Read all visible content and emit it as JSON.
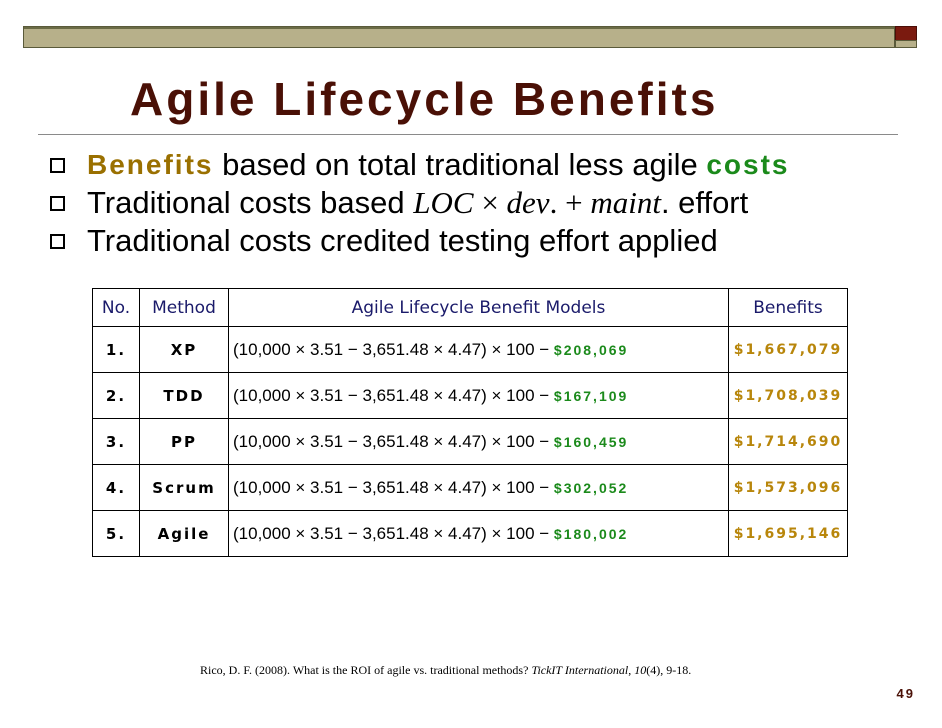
{
  "slide": {
    "title": "Agile Lifecycle Benefits",
    "page_number": "49",
    "accent_color": "#4a1006"
  },
  "bullets": [
    {
      "highlight_start": "Benefits",
      "text": " based on total traditional less agile ",
      "highlight_end": "costs"
    },
    {
      "text": "Traditional costs based ",
      "math_loc": "LOC",
      "times": " × ",
      "math_dev": "dev",
      "plus": ". + ",
      "math_maint": "maint",
      "tail": ". effort"
    },
    {
      "text": "Traditional costs credited testing effort applied"
    }
  ],
  "table": {
    "headers": {
      "no": "No.",
      "method": "Method",
      "model": "Agile Lifecycle Benefit Models",
      "benefits": "Benefits"
    },
    "rows": [
      {
        "no": "1.",
        "method": "XP",
        "formula": "(10,000 × 3.51 − 3,651.48 × 4.47) × 100 − ",
        "agile_cost": "$208,069",
        "benefit": "$1,667,079"
      },
      {
        "no": "2.",
        "method": "TDD",
        "formula": "(10,000 × 3.51 − 3,651.48 × 4.47) × 100 − ",
        "agile_cost": "$167,109",
        "benefit": "$1,708,039"
      },
      {
        "no": "3.",
        "method": "PP",
        "formula": "(10,000 × 3.51 − 3,651.48 × 4.47) × 100 − ",
        "agile_cost": "$160,459",
        "benefit": "$1,714,690"
      },
      {
        "no": "4.",
        "method": "Scrum",
        "formula": "(10,000 × 3.51 − 3,651.48 × 4.47) × 100 − ",
        "agile_cost": "$302,052",
        "benefit": "$1,573,096"
      },
      {
        "no": "5.",
        "method": "Agile",
        "formula": "(10,000 × 3.51 − 3,651.48 × 4.47) × 100 − ",
        "agile_cost": "$180,002",
        "benefit": "$1,695,146"
      }
    ]
  },
  "citation": {
    "prefix": "Rico, D. F. (2008). What is the ROI of agile vs. traditional methods? ",
    "journal": "TickIT International",
    "sep": ", ",
    "volume": "10",
    "suffix": "(4), 9-18."
  },
  "colors": {
    "benefit_gold": "#b8860b",
    "cost_green": "#1b8a1b",
    "header_navy": "#1a1a6a"
  }
}
